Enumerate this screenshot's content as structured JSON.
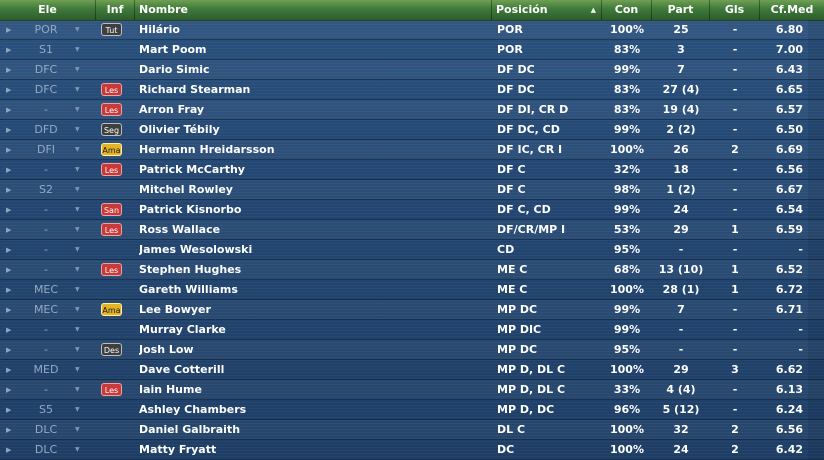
{
  "header": {
    "ele": "Ele",
    "inf": "Inf",
    "nombre": "Nombre",
    "posicion": "Posición",
    "con": "Con",
    "part": "Part",
    "gls": "Gls",
    "cfmed": "Cf.Med"
  },
  "icons": {
    "row_play": "play-triangle-icon",
    "row_dropdown": "dropdown-triangle-icon",
    "sort": "sort-ascending-icon"
  },
  "colors": {
    "header_green": "#3f7a3a",
    "background_blue": "#234772",
    "badge_red": "#c83a3a",
    "badge_yellow": "#e5b424",
    "badge_dark": "#3f3f3f"
  },
  "players": [
    {
      "ele": "POR",
      "inf": "Tut",
      "name": "Hilário",
      "pos": "POR",
      "con": "100%",
      "part": "25",
      "gls": "-",
      "cf": "6.80"
    },
    {
      "ele": "S1",
      "inf": "",
      "name": "Mart Poom",
      "pos": "POR",
      "con": "83%",
      "part": "3",
      "gls": "-",
      "cf": "7.00"
    },
    {
      "ele": "DFC",
      "inf": "",
      "name": "Dario Simic",
      "pos": "DF DC",
      "con": "99%",
      "part": "7",
      "gls": "-",
      "cf": "6.43"
    },
    {
      "ele": "DFC",
      "inf": "Les",
      "name": "Richard Stearman",
      "pos": "DF DC",
      "con": "83%",
      "part": "27 (4)",
      "gls": "-",
      "cf": "6.65"
    },
    {
      "ele": "-",
      "inf": "Les",
      "name": "Arron Fray",
      "pos": "DF DI, CR D",
      "con": "83%",
      "part": "19 (4)",
      "gls": "-",
      "cf": "6.57"
    },
    {
      "ele": "DFD",
      "inf": "Seg",
      "name": "Olivier Tébily",
      "pos": "DF DC, CD",
      "con": "99%",
      "part": "2 (2)",
      "gls": "-",
      "cf": "6.50"
    },
    {
      "ele": "DFI",
      "inf": "Ama",
      "name": "Hermann Hreidarsson",
      "pos": "DF IC, CR I",
      "con": "100%",
      "part": "26",
      "gls": "2",
      "cf": "6.69"
    },
    {
      "ele": "-",
      "inf": "Les",
      "name": "Patrick McCarthy",
      "pos": "DF C",
      "con": "32%",
      "part": "18",
      "gls": "-",
      "cf": "6.56"
    },
    {
      "ele": "S2",
      "inf": "",
      "name": "Mitchel Rowley",
      "pos": "DF C",
      "con": "98%",
      "part": "1 (2)",
      "gls": "-",
      "cf": "6.67"
    },
    {
      "ele": "-",
      "inf": "San",
      "name": "Patrick Kisnorbo",
      "pos": "DF C, CD",
      "con": "99%",
      "part": "24",
      "gls": "-",
      "cf": "6.54"
    },
    {
      "ele": "-",
      "inf": "Les",
      "name": "Ross Wallace",
      "pos": "DF/CR/MP I",
      "con": "53%",
      "part": "29",
      "gls": "1",
      "cf": "6.59"
    },
    {
      "ele": "-",
      "inf": "",
      "name": "James Wesolowski",
      "pos": "CD",
      "con": "95%",
      "part": "-",
      "gls": "-",
      "cf": "-"
    },
    {
      "ele": "-",
      "inf": "Les",
      "name": "Stephen Hughes",
      "pos": "ME C",
      "con": "68%",
      "part": "13 (10)",
      "gls": "1",
      "cf": "6.52"
    },
    {
      "ele": "MEC",
      "inf": "",
      "name": "Gareth Williams",
      "pos": "ME C",
      "con": "100%",
      "part": "28 (1)",
      "gls": "1",
      "cf": "6.72"
    },
    {
      "ele": "MEC",
      "inf": "Ama",
      "name": "Lee Bowyer",
      "pos": "MP DC",
      "con": "99%",
      "part": "7",
      "gls": "-",
      "cf": "6.71"
    },
    {
      "ele": "-",
      "inf": "",
      "name": "Murray Clarke",
      "pos": "MP DIC",
      "con": "99%",
      "part": "-",
      "gls": "-",
      "cf": "-"
    },
    {
      "ele": "-",
      "inf": "Des",
      "name": "Josh Low",
      "pos": "MP DC",
      "con": "95%",
      "part": "-",
      "gls": "-",
      "cf": "-"
    },
    {
      "ele": "MED",
      "inf": "",
      "name": "Dave Cotterill",
      "pos": "MP D, DL C",
      "con": "100%",
      "part": "29",
      "gls": "3",
      "cf": "6.62"
    },
    {
      "ele": "-",
      "inf": "Les",
      "name": "Iain Hume",
      "pos": "MP D, DL C",
      "con": "33%",
      "part": "4 (4)",
      "gls": "-",
      "cf": "6.13"
    },
    {
      "ele": "S5",
      "inf": "",
      "name": "Ashley Chambers",
      "pos": "MP D, DC",
      "con": "96%",
      "part": "5 (12)",
      "gls": "-",
      "cf": "6.24"
    },
    {
      "ele": "DLC",
      "inf": "",
      "name": "Daniel Galbraith",
      "pos": "DL C",
      "con": "100%",
      "part": "32",
      "gls": "2",
      "cf": "6.56"
    },
    {
      "ele": "DLC",
      "inf": "",
      "name": "Matty Fryatt",
      "pos": "DC",
      "con": "100%",
      "part": "24",
      "gls": "2",
      "cf": "6.42"
    }
  ]
}
